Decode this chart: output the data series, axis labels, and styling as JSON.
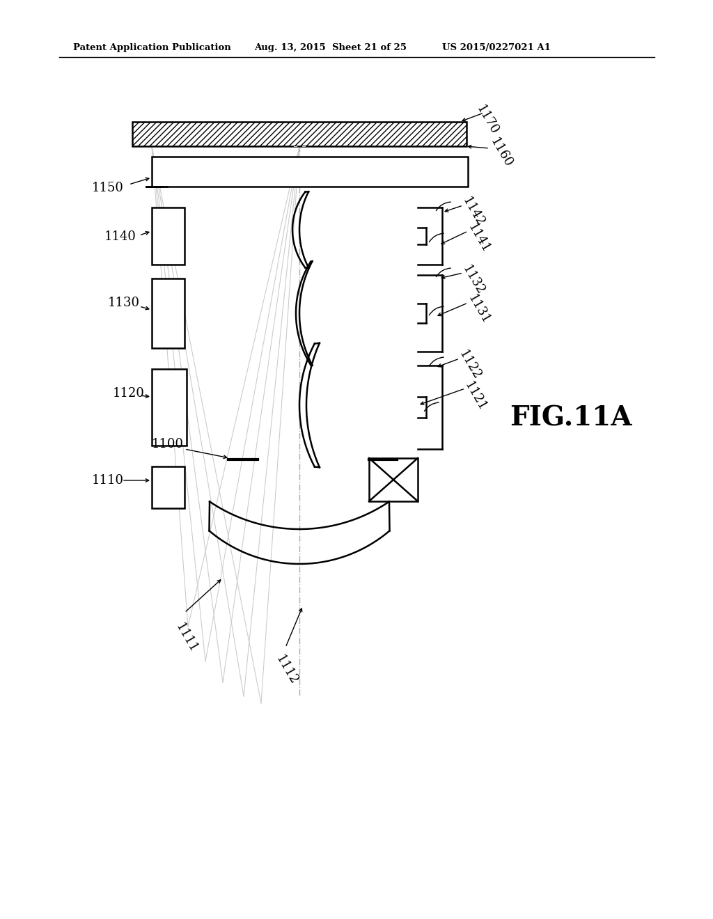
{
  "bg_color": "#ffffff",
  "line_color": "#000000",
  "header_text": "Patent Application Publication",
  "header_date": "Aug. 13, 2015  Sheet 21 of 25",
  "header_patent": "US 2015/0227021 A1",
  "fig_label": "FIG.11A"
}
